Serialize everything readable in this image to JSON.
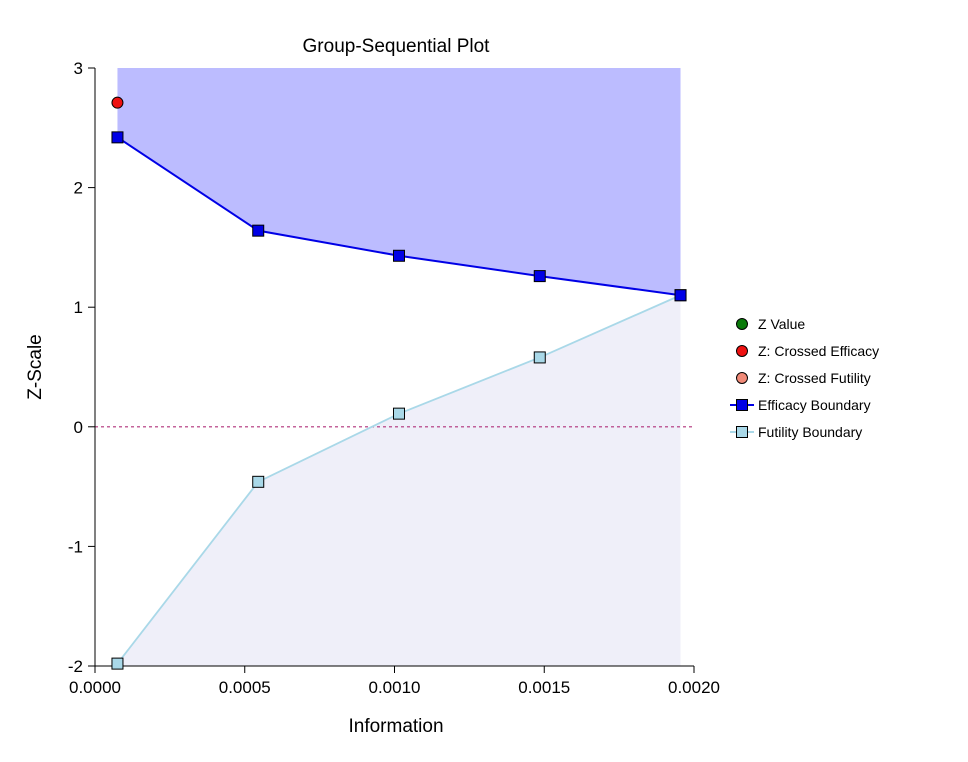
{
  "chart_data": {
    "type": "line",
    "title": "Group-Sequential Plot",
    "xlabel": "Information",
    "ylabel": "Z-Scale",
    "xlim": [
      0.0,
      0.002
    ],
    "ylim": [
      -2,
      3
    ],
    "x_ticks": [
      0.0,
      0.0005,
      0.001,
      0.0015,
      0.002
    ],
    "x_tick_labels": [
      "0.0000",
      "0.0005",
      "0.0010",
      "0.0015",
      "0.0020"
    ],
    "y_ticks": [
      -2,
      -1,
      0,
      1,
      2,
      3
    ],
    "y_tick_labels": [
      "-2",
      "-1",
      "0",
      "1",
      "2",
      "3"
    ],
    "grid": false,
    "legend_position": "right",
    "reference_line": {
      "y": 0,
      "color": "#b0307a",
      "style": "dashed"
    },
    "x": [
      7.5e-05,
      0.000545,
      0.001015,
      0.001485,
      0.001955
    ],
    "series": [
      {
        "name": "Z Value",
        "kind": "point",
        "color": "#0a7a0a",
        "x": [],
        "y": []
      },
      {
        "name": "Z: Crossed Efficacy",
        "kind": "point",
        "color": "#ee1111",
        "x": [
          7.5e-05
        ],
        "y": [
          2.71
        ]
      },
      {
        "name": "Z: Crossed Futility",
        "kind": "point",
        "color": "#f08a78",
        "x": [],
        "y": []
      },
      {
        "name": "Efficacy Boundary",
        "kind": "line",
        "color": "#0000e6",
        "values": [
          2.42,
          1.64,
          1.43,
          1.26,
          1.1
        ]
      },
      {
        "name": "Futility Boundary",
        "kind": "line",
        "color": "#a9d8e8",
        "values": [
          -1.98,
          -0.46,
          0.11,
          0.58,
          1.1
        ]
      }
    ],
    "regions": {
      "efficacy_fill": "#bcbcff",
      "futility_fill": "#efeff9"
    }
  }
}
